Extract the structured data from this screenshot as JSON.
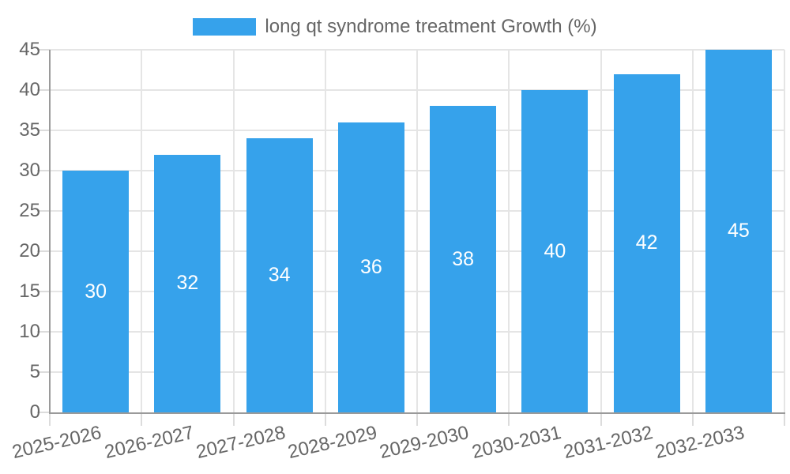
{
  "legend": {
    "position": "top-center"
  },
  "chart_data": {
    "type": "bar",
    "title": "",
    "xlabel": "",
    "ylabel": "",
    "categories": [
      "2025-2026",
      "2026-2027",
      "2027-2028",
      "2028-2029",
      "2029-2030",
      "2030-2031",
      "2031-2032",
      "2032-2033"
    ],
    "series": [
      {
        "name": "long qt syndrome treatment Growth (%)",
        "values": [
          30,
          32,
          34,
          36,
          38,
          40,
          42,
          45
        ]
      }
    ],
    "value_labels": [
      "30",
      "32",
      "34",
      "36",
      "38",
      "40",
      "42",
      "45"
    ],
    "ylim": [
      0,
      45
    ],
    "yticks": [
      0,
      5,
      10,
      15,
      20,
      25,
      30,
      35,
      40,
      45
    ],
    "grid": true,
    "legend_position": "top",
    "x_tick_rotation_deg": -13,
    "colors": {
      "bar": "#36A2EB",
      "bar_value_label": "#FFFFFF",
      "axis_text": "#666666",
      "gridline": "#E5E5E5",
      "tick_mark": "#DCDCDC",
      "axis_line": "#9A9A9A",
      "background": "#FFFFFF"
    }
  }
}
